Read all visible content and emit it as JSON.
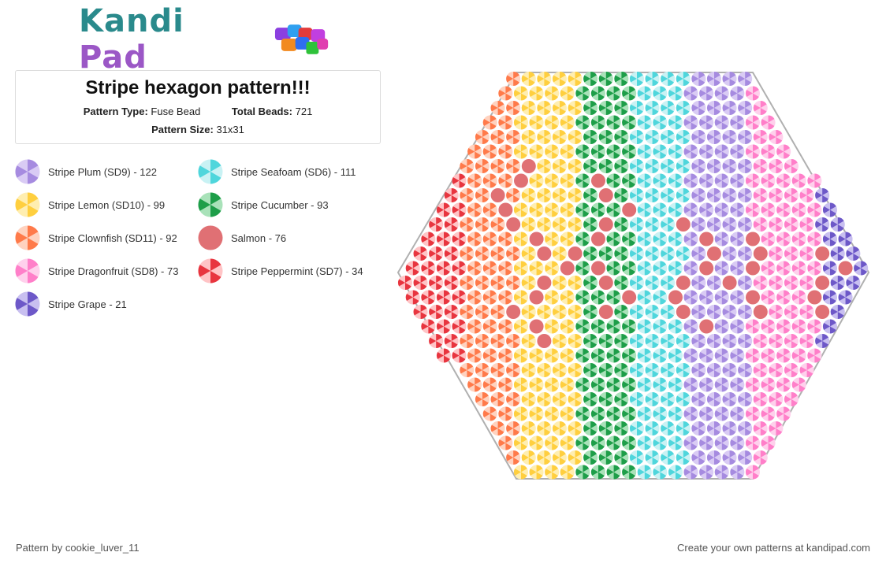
{
  "brand": {
    "name_part1": "Kandi",
    "name_part2": "Pad"
  },
  "pattern": {
    "title": "Stripe hexagon pattern!!!",
    "type_label": "Pattern Type:",
    "type_value": "Fuse Bead",
    "total_label": "Total Beads:",
    "total_value": "721",
    "size_label": "Pattern Size:",
    "size_value": "31x31"
  },
  "legend": [
    {
      "label": "Stripe Plum (SD9) - 122",
      "color": "#a68be0",
      "light": "#d9cbf4",
      "striped": true
    },
    {
      "label": "Stripe Seafoam (SD6) - 111",
      "color": "#4fd6dc",
      "light": "#c9f2f4",
      "striped": true
    },
    {
      "label": "Stripe Lemon (SD10) - 99",
      "color": "#ffcf3f",
      "light": "#ffeeb0",
      "striped": true
    },
    {
      "label": "Stripe Cucumber - 93",
      "color": "#1e9e49",
      "light": "#a9e2b9",
      "striped": true
    },
    {
      "label": "Stripe Clownfish (SD11) - 92",
      "color": "#ff7a4a",
      "light": "#ffd2bf",
      "striped": true
    },
    {
      "label": "Salmon - 76",
      "color": "#e07074",
      "light": "#e07074",
      "striped": false
    },
    {
      "label": "Stripe Dragonfruit (SD8) - 73",
      "color": "#ff7fc9",
      "light": "#ffd0ec",
      "striped": true
    },
    {
      "label": "Stripe Peppermint (SD7) - 34",
      "color": "#e8353f",
      "light": "#ffc4c6",
      "striped": true
    },
    {
      "label": "Stripe Grape - 21",
      "color": "#6d58c8",
      "light": "#c8bff0",
      "striped": true
    }
  ],
  "footer": {
    "left": "Pattern by cookie_luver_11",
    "right": "Create your own patterns at kandipad.com"
  }
}
